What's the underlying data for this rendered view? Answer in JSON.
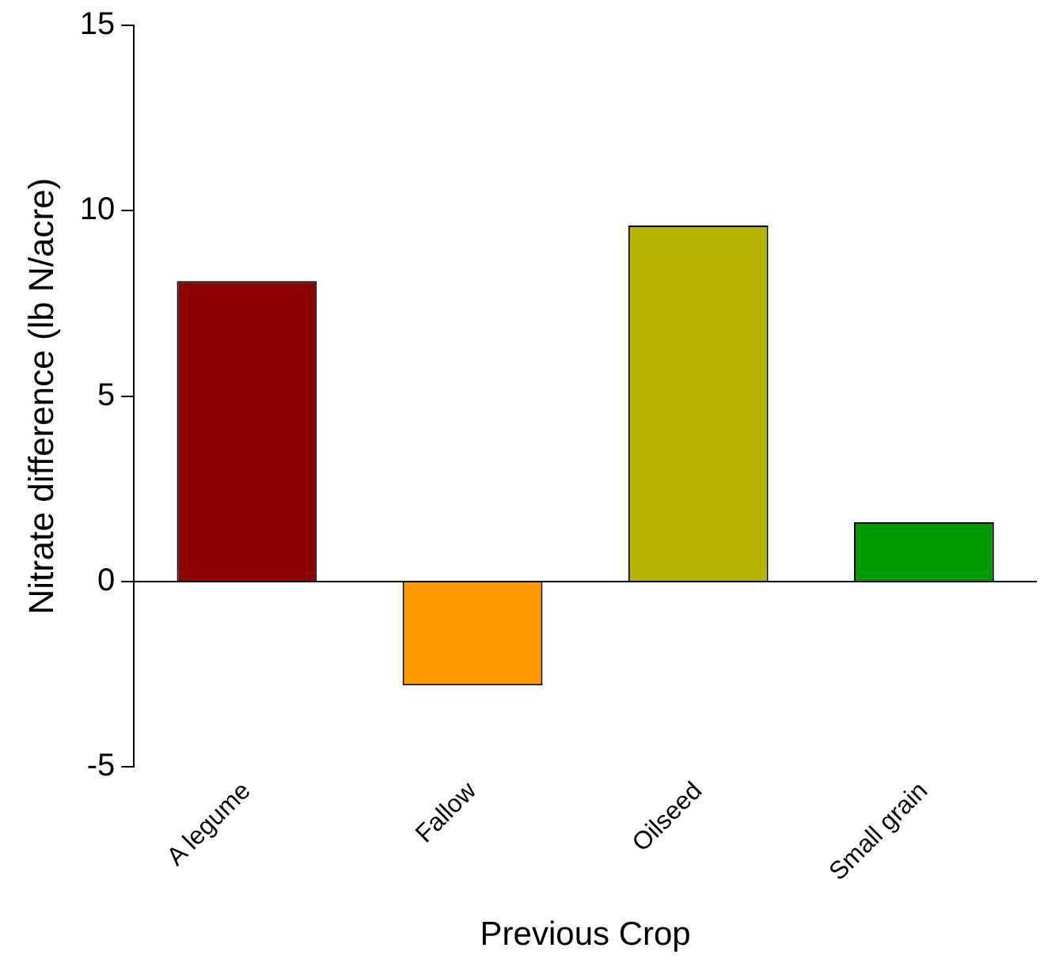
{
  "chart_data": {
    "type": "bar",
    "xlabel": "Previous Crop",
    "ylabel": "Nitrate difference (lb N/acre)",
    "categories": [
      "A legume",
      "Fallow",
      "Oilseed",
      "Small grain"
    ],
    "values": [
      8.1,
      -2.8,
      9.6,
      1.6
    ],
    "colors": [
      "#8b0000",
      "#ff9900",
      "#b5b500",
      "#009900"
    ],
    "ylim": [
      -5,
      15
    ],
    "yticks": [
      -5,
      0,
      5,
      10,
      15
    ],
    "grid": false,
    "legend": false,
    "ref_lines": [
      {
        "axis": "y",
        "value": 0,
        "color": "#000000"
      }
    ]
  }
}
